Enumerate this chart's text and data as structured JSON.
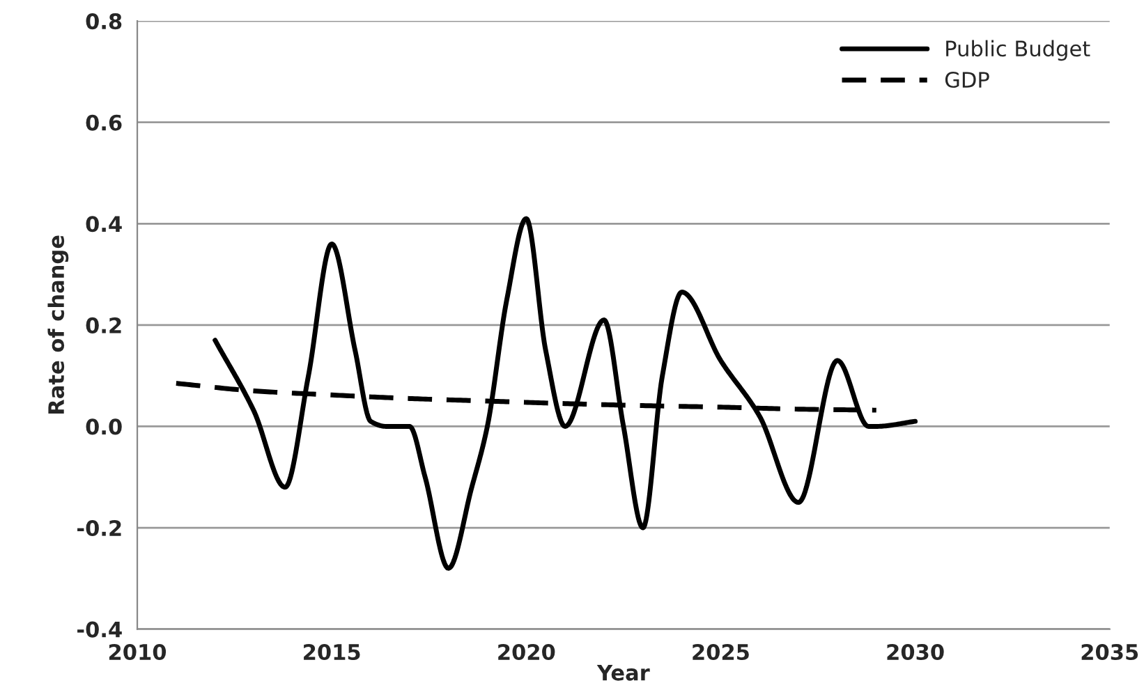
{
  "chart_data": {
    "type": "line",
    "xlabel": "Year",
    "ylabel": "Rate of change",
    "xlim": [
      2010,
      2035
    ],
    "xticks": [
      2010,
      2015,
      2020,
      2025,
      2030,
      2035
    ],
    "ylim": [
      -0.4,
      0.8
    ],
    "yticks": [
      {
        "value": -0.4,
        "label": "-0.4"
      },
      {
        "value": -0.2,
        "label": "-0.2"
      },
      {
        "value": 0.0,
        "label": "0.0"
      },
      {
        "value": 0.2,
        "label": "0.2"
      },
      {
        "value": 0.4,
        "label": "0.4"
      },
      {
        "value": 0.6,
        "label": "0.6"
      },
      {
        "value": 0.8,
        "label": "0.8"
      }
    ],
    "grid": "y",
    "legend": "top right",
    "marker": "none",
    "series": [
      {
        "name": "Public Budget",
        "color": "#000000",
        "line_style": "solid",
        "x": [
          2012,
          2013,
          2013.8,
          2014.4,
          2015,
          2015.6,
          2016,
          2016.4,
          2017,
          2017.4,
          2018,
          2018.6,
          2019,
          2019.5,
          2020,
          2020.5,
          2021,
          2022,
          2022.5,
          2023,
          2023.5,
          2024,
          2025,
          2026,
          2027,
          2028,
          2028.8,
          2029,
          2030
        ],
        "values": [
          0.17,
          0.03,
          -0.12,
          0.1,
          0.36,
          0.15,
          0.01,
          0.0,
          0.0,
          -0.1,
          -0.28,
          -0.12,
          0.0,
          0.25,
          0.41,
          0.15,
          0.0,
          0.21,
          0.0,
          -0.2,
          0.1,
          0.265,
          0.13,
          0.02,
          -0.15,
          0.13,
          0.0,
          0.0,
          0.01
        ]
      },
      {
        "name": "GDP",
        "color": "#000000",
        "line_style": "dashed",
        "x": [
          2011,
          2013,
          2015,
          2017,
          2019,
          2021,
          2023,
          2025,
          2027,
          2029
        ],
        "values": [
          0.085,
          0.07,
          0.062,
          0.055,
          0.05,
          0.045,
          0.041,
          0.038,
          0.034,
          0.032
        ]
      }
    ]
  }
}
